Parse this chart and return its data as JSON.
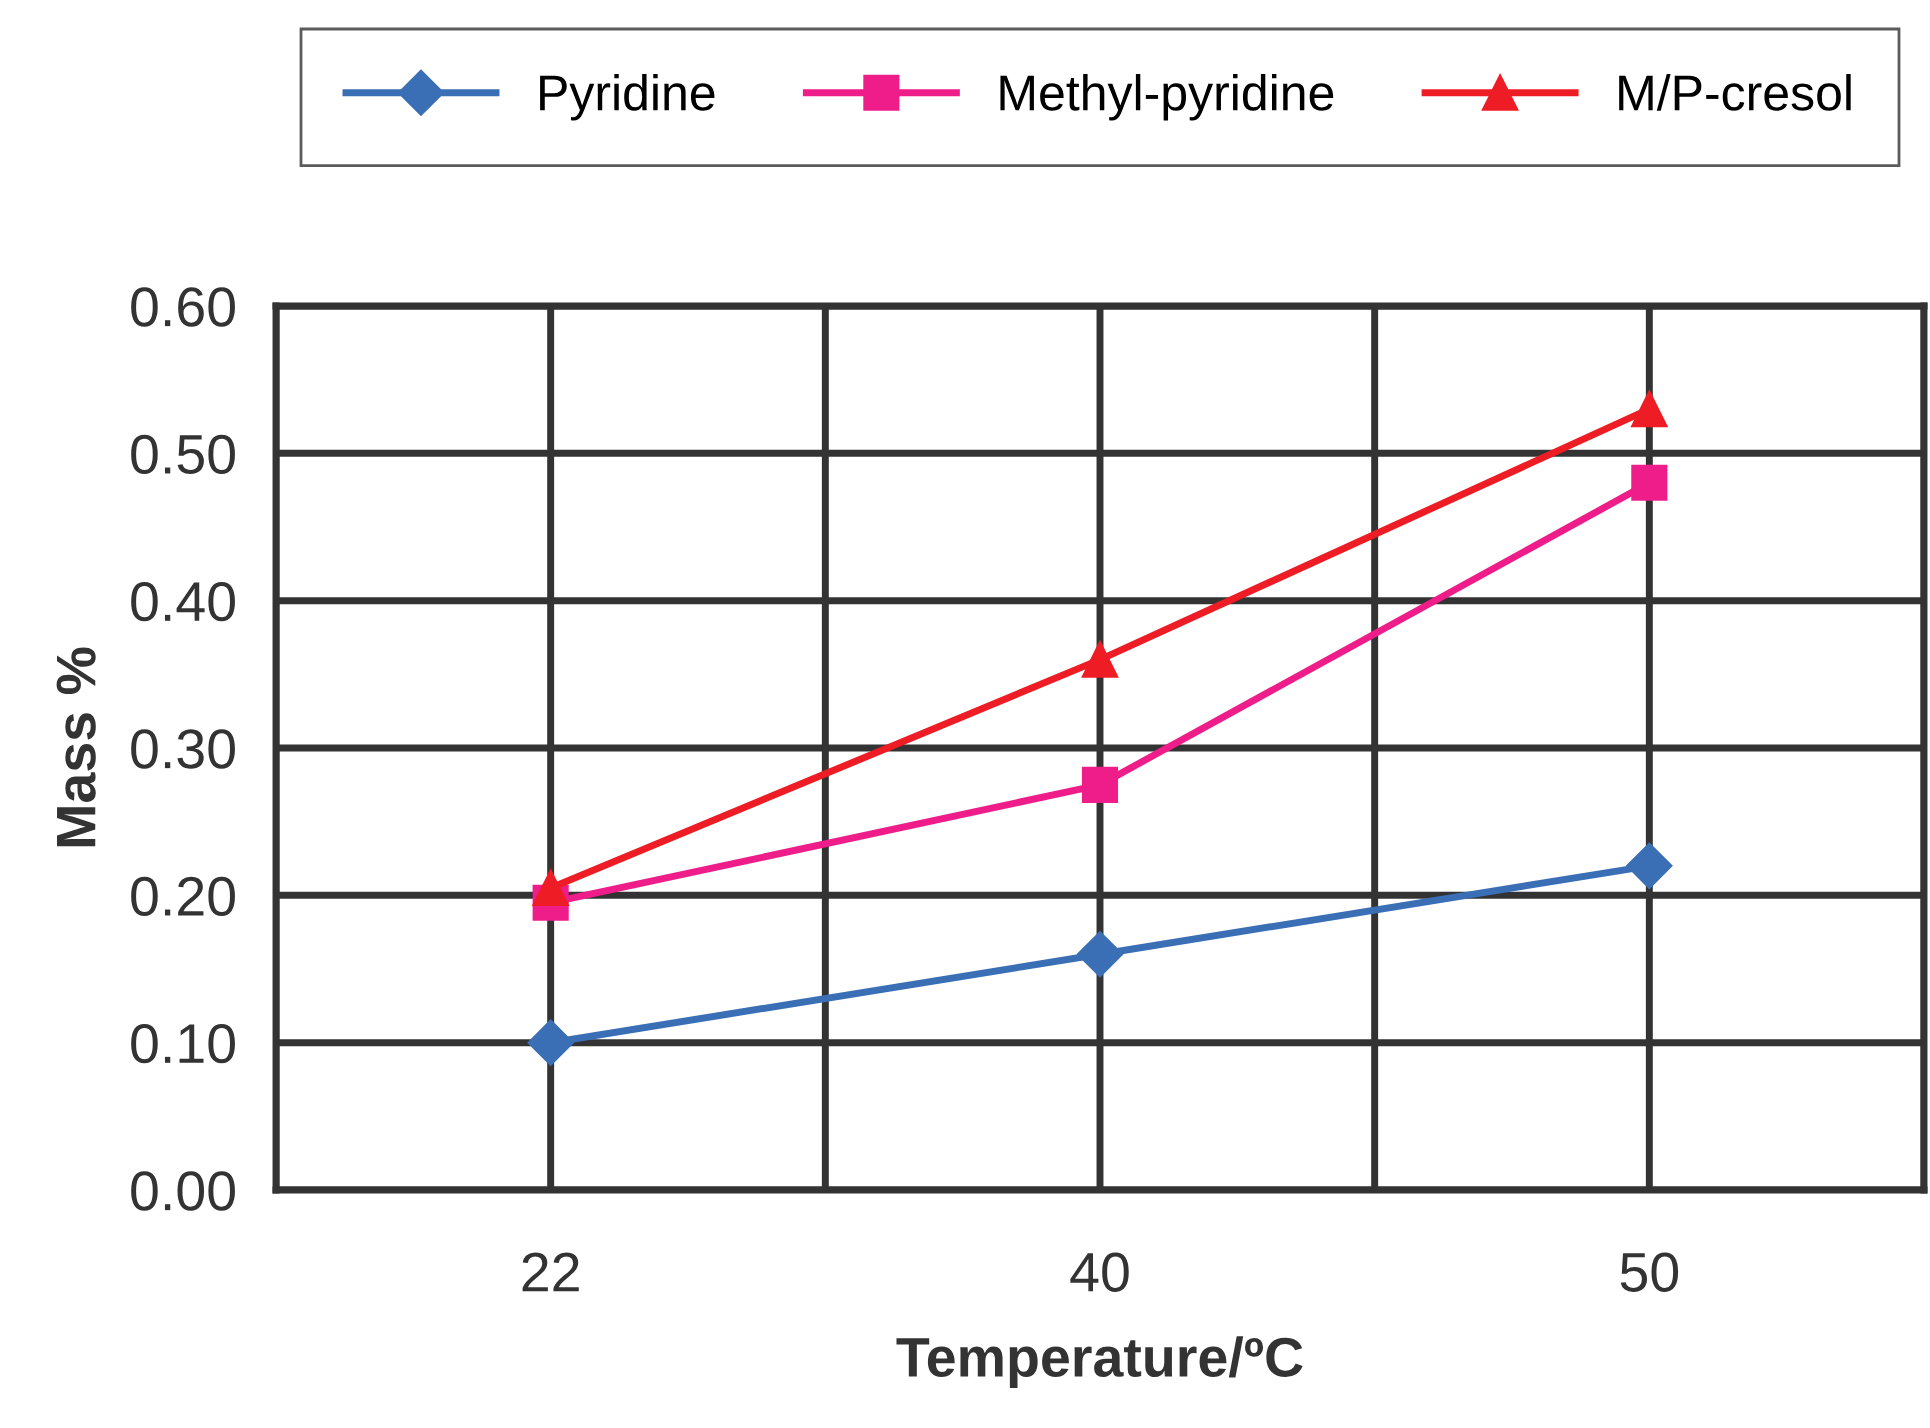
{
  "chart_data": {
    "type": "line",
    "xlabel": "Temperature/ºC",
    "ylabel": "Mass %",
    "categories": [
      "22",
      "40",
      "50"
    ],
    "series": [
      {
        "name": "Pyridine",
        "color": "#3a6fb5",
        "values": [
          0.1,
          0.16,
          0.22
        ],
        "marker": "diamond"
      },
      {
        "name": "Methyl-pyridine",
        "color": "#ee1d8a",
        "values": [
          0.195,
          0.275,
          0.48
        ],
        "marker": "square"
      },
      {
        "name": "M/P-cresol",
        "color": "#ee1c25",
        "values": [
          0.205,
          0.36,
          0.53
        ],
        "marker": "triangle"
      }
    ],
    "ylim": [
      0,
      0.6
    ],
    "yticks": [
      {
        "value": 0,
        "label": "0.00"
      },
      {
        "value": 0.1,
        "label": "0.10"
      },
      {
        "value": 0.2,
        "label": "0.20"
      },
      {
        "value": 0.3,
        "label": "0.30"
      },
      {
        "value": 0.4,
        "label": "0.40"
      },
      {
        "value": 0.5,
        "label": "0.50"
      },
      {
        "value": 0.6,
        "label": "0.60"
      }
    ],
    "grid": true,
    "legend": "top",
    "line_style": "solid"
  }
}
